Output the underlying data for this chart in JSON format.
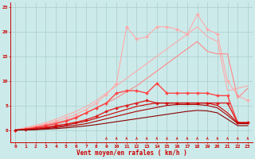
{
  "background_color": "#cceaea",
  "grid_color": "#aacccc",
  "x_label": "Vent moyen/en rafales ( km/h )",
  "x_ticks": [
    0,
    1,
    2,
    3,
    4,
    5,
    6,
    7,
    8,
    9,
    10,
    11,
    12,
    13,
    14,
    15,
    16,
    17,
    18,
    19,
    20,
    21,
    22,
    23
  ],
  "y_ticks": [
    0,
    5,
    10,
    15,
    20,
    25
  ],
  "ylim": [
    -2.5,
    26
  ],
  "xlim": [
    -0.5,
    23.5
  ],
  "lines": [
    {
      "color": "#ffaaaa",
      "linewidth": 0.8,
      "marker": null,
      "x": [
        0,
        1,
        2,
        3,
        4,
        5,
        6,
        7,
        8,
        9,
        10,
        11,
        12,
        13,
        14,
        15,
        16,
        17,
        18,
        19,
        20,
        21,
        22,
        23
      ],
      "y": [
        0,
        0.5,
        1.0,
        1.5,
        2.2,
        3.0,
        3.8,
        4.8,
        6.0,
        7.5,
        9.0,
        10.5,
        12.0,
        13.5,
        15.0,
        16.5,
        18.0,
        19.5,
        21.0,
        19.0,
        18.0,
        8.0,
        8.5,
        9.0
      ]
    },
    {
      "color": "#ffaaaa",
      "linewidth": 0.8,
      "marker": "D",
      "markersize": 2.0,
      "x": [
        0,
        1,
        2,
        3,
        4,
        5,
        6,
        7,
        8,
        9,
        10,
        11,
        12,
        13,
        14,
        15,
        16,
        17,
        18,
        19,
        20,
        21,
        22,
        23
      ],
      "y": [
        0,
        0.3,
        0.7,
        1.2,
        1.8,
        2.5,
        3.2,
        4.2,
        5.5,
        7.2,
        9.5,
        21.0,
        18.5,
        19.0,
        21.0,
        21.0,
        20.5,
        19.5,
        23.5,
        20.5,
        19.5,
        10.0,
        7.0,
        6.0
      ]
    },
    {
      "color": "#ff8888",
      "linewidth": 0.8,
      "marker": null,
      "x": [
        0,
        1,
        2,
        3,
        4,
        5,
        6,
        7,
        8,
        9,
        10,
        11,
        12,
        13,
        14,
        15,
        16,
        17,
        18,
        19,
        20,
        21,
        22,
        23
      ],
      "y": [
        0,
        0.3,
        0.7,
        1.1,
        1.5,
        2.0,
        2.7,
        3.5,
        4.5,
        5.5,
        6.5,
        7.8,
        9.0,
        10.5,
        12.0,
        13.5,
        15.0,
        16.5,
        18.0,
        16.0,
        15.5,
        15.5,
        6.5,
        8.5
      ]
    },
    {
      "color": "#ff4444",
      "linewidth": 1.0,
      "marker": "D",
      "markersize": 2.0,
      "x": [
        0,
        1,
        2,
        3,
        4,
        5,
        6,
        7,
        8,
        9,
        10,
        11,
        12,
        13,
        14,
        15,
        16,
        17,
        18,
        19,
        20,
        21,
        22,
        23
      ],
      "y": [
        0,
        0.2,
        0.5,
        0.9,
        1.3,
        1.8,
        2.5,
        3.5,
        4.5,
        5.5,
        7.5,
        8.0,
        8.0,
        7.5,
        9.5,
        7.5,
        7.5,
        7.5,
        7.5,
        7.5,
        7.0,
        7.0,
        1.5,
        1.5
      ]
    },
    {
      "color": "#dd2222",
      "linewidth": 1.0,
      "marker": "D",
      "markersize": 2.0,
      "x": [
        0,
        1,
        2,
        3,
        4,
        5,
        6,
        7,
        8,
        9,
        10,
        11,
        12,
        13,
        14,
        15,
        16,
        17,
        18,
        19,
        20,
        21,
        22,
        23
      ],
      "y": [
        0,
        0.15,
        0.35,
        0.6,
        0.9,
        1.2,
        1.6,
        2.1,
        2.8,
        3.8,
        4.5,
        5.0,
        5.5,
        6.0,
        5.5,
        5.5,
        5.5,
        5.5,
        5.5,
        5.5,
        5.5,
        5.5,
        1.5,
        1.5
      ]
    },
    {
      "color": "#cc0000",
      "linewidth": 0.8,
      "marker": null,
      "x": [
        0,
        1,
        2,
        3,
        4,
        5,
        6,
        7,
        8,
        9,
        10,
        11,
        12,
        13,
        14,
        15,
        16,
        17,
        18,
        19,
        20,
        21,
        22,
        23
      ],
      "y": [
        0,
        0.1,
        0.2,
        0.4,
        0.7,
        1.0,
        1.4,
        1.8,
        2.4,
        3.0,
        3.6,
        4.2,
        4.8,
        5.2,
        5.5,
        5.5,
        5.5,
        5.5,
        5.5,
        5.5,
        5.0,
        3.5,
        1.5,
        1.5
      ]
    },
    {
      "color": "#aa0000",
      "linewidth": 0.8,
      "marker": null,
      "x": [
        0,
        1,
        2,
        3,
        4,
        5,
        6,
        7,
        8,
        9,
        10,
        11,
        12,
        13,
        14,
        15,
        16,
        17,
        18,
        19,
        20,
        21,
        22,
        23
      ],
      "y": [
        0,
        0.05,
        0.15,
        0.3,
        0.5,
        0.75,
        1.0,
        1.3,
        1.8,
        2.3,
        2.8,
        3.3,
        3.8,
        4.2,
        4.6,
        5.0,
        5.2,
        5.2,
        5.2,
        5.0,
        4.5,
        3.0,
        1.3,
        1.3
      ]
    },
    {
      "color": "#880000",
      "linewidth": 0.8,
      "marker": null,
      "x": [
        0,
        1,
        2,
        3,
        4,
        5,
        6,
        7,
        8,
        9,
        10,
        11,
        12,
        13,
        14,
        15,
        16,
        17,
        18,
        19,
        20,
        21,
        22,
        23
      ],
      "y": [
        0,
        0.02,
        0.08,
        0.18,
        0.3,
        0.45,
        0.65,
        0.85,
        1.1,
        1.4,
        1.7,
        2.0,
        2.3,
        2.6,
        2.9,
        3.2,
        3.5,
        3.8,
        4.0,
        3.9,
        3.5,
        2.2,
        0.9,
        0.9
      ]
    }
  ],
  "wind_arrows_x": [
    9,
    10,
    11,
    12,
    13,
    14,
    15,
    16,
    17,
    18,
    19,
    20,
    21,
    22,
    23
  ],
  "axis_fontsize": 5.5,
  "tick_fontsize": 4.5
}
